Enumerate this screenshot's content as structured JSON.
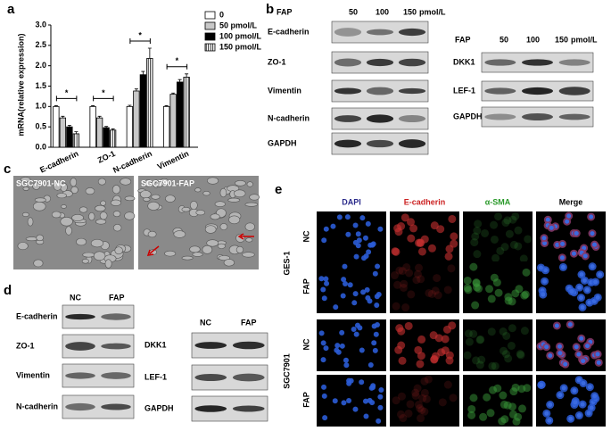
{
  "chart_data": {
    "type": "bar",
    "panel": "a",
    "ylabel": "mRNA(relative expression)",
    "categories": [
      "E-cadherin",
      "ZO-1",
      "N-cadherin",
      "Vimentin"
    ],
    "series": [
      {
        "name": "0",
        "color": "#ffffff",
        "values": [
          1.0,
          1.0,
          1.0,
          1.0
        ],
        "errors": [
          0.02,
          0.02,
          0.03,
          0.02
        ]
      },
      {
        "name": "50 pmol/L",
        "color": "#c8c8c8",
        "values": [
          0.72,
          0.72,
          1.38,
          1.3
        ],
        "errors": [
          0.04,
          0.04,
          0.05,
          0.03
        ]
      },
      {
        "name": "100 pmol/L",
        "color": "#000000",
        "values": [
          0.5,
          0.48,
          1.78,
          1.6
        ],
        "errors": [
          0.04,
          0.03,
          0.08,
          0.06
        ]
      },
      {
        "name": "150 pmol/L",
        "color": "#ffffff",
        "pattern": "vertical-lines",
        "values": [
          0.33,
          0.42,
          2.18,
          1.72
        ],
        "errors": [
          0.05,
          0.03,
          0.25,
          0.08
        ]
      }
    ],
    "ylim": [
      0,
      3
    ],
    "yticks": [
      {
        "value": 0,
        "label": "0.0"
      },
      {
        "value": 0.5,
        "label": "0.5"
      },
      {
        "value": 1,
        "label": "1.0"
      },
      {
        "value": 1.5,
        "label": "1.5"
      },
      {
        "value": 2,
        "label": "2.0"
      },
      {
        "value": 2.5,
        "label": "2.5"
      },
      {
        "value": 3,
        "label": "3.0"
      }
    ],
    "annotations": [
      "*",
      "*",
      "*",
      "*"
    ],
    "legend": "upper-right"
  },
  "panel_a": {
    "label": "a"
  },
  "panel_b": {
    "label": "b",
    "left": {
      "header": [
        "FAP",
        "50",
        "100",
        "150",
        "pmol/L"
      ],
      "rows": [
        "E-cadherin",
        "ZO-1",
        "Vimentin",
        "N-cadherin",
        "GAPDH"
      ]
    },
    "right": {
      "header": [
        "FAP",
        "50",
        "100",
        "150",
        "pmol/L"
      ],
      "rows": [
        "DKK1",
        "LEF-1",
        "GAPDH"
      ]
    }
  },
  "panel_c": {
    "label": "c",
    "images": [
      "SGC7901-NC",
      "SGC7901-FAP"
    ]
  },
  "panel_d": {
    "label": "d",
    "left": {
      "header": [
        "NC",
        "FAP"
      ],
      "rows": [
        "E-cadherin",
        "ZO-1",
        "Vimentin",
        "N-cadherin"
      ]
    },
    "right": {
      "header": [
        "NC",
        "FAP"
      ],
      "rows": [
        "DKK1",
        "LEF-1",
        "GAPDH"
      ]
    }
  },
  "panel_e": {
    "label": "e",
    "columns": [
      "DAPI",
      "E-cadherin",
      "α-SMA",
      "Merge"
    ],
    "groups": [
      {
        "name": "GES-1",
        "rows": [
          "NC",
          "FAP"
        ]
      },
      {
        "name": "SGC7901",
        "rows": [
          "NC",
          "FAP"
        ]
      }
    ]
  }
}
